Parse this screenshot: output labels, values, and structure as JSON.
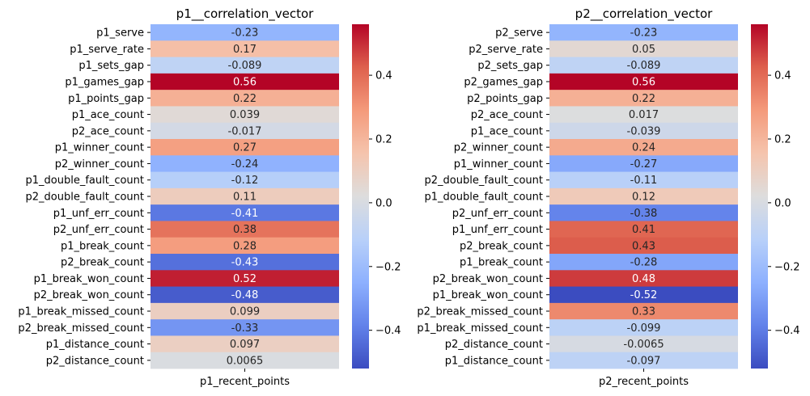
{
  "chart_data": [
    {
      "type": "heatmap",
      "title": "p1__correlation_vector",
      "column": "p1_recent_points",
      "colormap": "coolwarm",
      "vmin": -0.52,
      "vmax": 0.56,
      "colorbar_ticks": [
        "0.4",
        "0.2",
        "0.0",
        "−0.2",
        "−0.4"
      ],
      "colorbar_tick_values": [
        0.4,
        0.2,
        0.0,
        -0.2,
        -0.4
      ],
      "rows": [
        {
          "label": "p1_serve",
          "value": -0.23,
          "text": "-0.23"
        },
        {
          "label": "p1_serve_rate",
          "value": 0.17,
          "text": "0.17"
        },
        {
          "label": "p1_sets_gap",
          "value": -0.089,
          "text": "-0.089"
        },
        {
          "label": "p1_games_gap",
          "value": 0.56,
          "text": "0.56"
        },
        {
          "label": "p1_points_gap",
          "value": 0.22,
          "text": "0.22"
        },
        {
          "label": "p1_ace_count",
          "value": 0.039,
          "text": "0.039"
        },
        {
          "label": "p2_ace_count",
          "value": -0.017,
          "text": "-0.017"
        },
        {
          "label": "p1_winner_count",
          "value": 0.27,
          "text": "0.27"
        },
        {
          "label": "p2_winner_count",
          "value": -0.24,
          "text": "-0.24"
        },
        {
          "label": "p1_double_fault_count",
          "value": -0.12,
          "text": "-0.12"
        },
        {
          "label": "p2_double_fault_count",
          "value": 0.11,
          "text": "0.11"
        },
        {
          "label": "p1_unf_err_count",
          "value": -0.41,
          "text": "-0.41"
        },
        {
          "label": "p2_unf_err_count",
          "value": 0.38,
          "text": "0.38"
        },
        {
          "label": "p1_break_count",
          "value": 0.28,
          "text": "0.28"
        },
        {
          "label": "p2_break_count",
          "value": -0.43,
          "text": "-0.43"
        },
        {
          "label": "p1_break_won_count",
          "value": 0.52,
          "text": "0.52"
        },
        {
          "label": "p2_break_won_count",
          "value": -0.48,
          "text": "-0.48"
        },
        {
          "label": "p1_break_missed_count",
          "value": 0.099,
          "text": "0.099"
        },
        {
          "label": "p2_break_missed_count",
          "value": -0.33,
          "text": "-0.33"
        },
        {
          "label": "p1_distance_count",
          "value": 0.097,
          "text": "0.097"
        },
        {
          "label": "p2_distance_count",
          "value": 0.0065,
          "text": "0.0065"
        }
      ]
    },
    {
      "type": "heatmap",
      "title": "p2__correlation_vector",
      "column": "p2_recent_points",
      "colormap": "coolwarm",
      "vmin": -0.52,
      "vmax": 0.56,
      "colorbar_ticks": [
        "0.4",
        "0.2",
        "0.0",
        "−0.2",
        "−0.4"
      ],
      "colorbar_tick_values": [
        0.4,
        0.2,
        0.0,
        -0.2,
        -0.4
      ],
      "rows": [
        {
          "label": "p2_serve",
          "value": -0.23,
          "text": "-0.23"
        },
        {
          "label": "p2_serve_rate",
          "value": 0.05,
          "text": "0.05"
        },
        {
          "label": "p2_sets_gap",
          "value": -0.089,
          "text": "-0.089"
        },
        {
          "label": "p2_games_gap",
          "value": 0.56,
          "text": "0.56"
        },
        {
          "label": "p2_points_gap",
          "value": 0.22,
          "text": "0.22"
        },
        {
          "label": "p2_ace_count",
          "value": 0.017,
          "text": "0.017"
        },
        {
          "label": "p1_ace_count",
          "value": -0.039,
          "text": "-0.039"
        },
        {
          "label": "p2_winner_count",
          "value": 0.24,
          "text": "0.24"
        },
        {
          "label": "p1_winner_count",
          "value": -0.27,
          "text": "-0.27"
        },
        {
          "label": "p2_double_fault_count",
          "value": -0.11,
          "text": "-0.11"
        },
        {
          "label": "p1_double_fault_count",
          "value": 0.12,
          "text": "0.12"
        },
        {
          "label": "p2_unf_err_count",
          "value": -0.38,
          "text": "-0.38"
        },
        {
          "label": "p1_unf_err_count",
          "value": 0.41,
          "text": "0.41"
        },
        {
          "label": "p2_break_count",
          "value": 0.43,
          "text": "0.43"
        },
        {
          "label": "p1_break_count",
          "value": -0.28,
          "text": "-0.28"
        },
        {
          "label": "p2_break_won_count",
          "value": 0.48,
          "text": "0.48"
        },
        {
          "label": "p1_break_won_count",
          "value": -0.52,
          "text": "-0.52"
        },
        {
          "label": "p2_break_missed_count",
          "value": 0.33,
          "text": "0.33"
        },
        {
          "label": "p1_break_missed_count",
          "value": -0.099,
          "text": "-0.099"
        },
        {
          "label": "p2_distance_count",
          "value": -0.0065,
          "text": "-0.0065"
        },
        {
          "label": "p1_distance_count",
          "value": -0.097,
          "text": "-0.097"
        }
      ]
    }
  ]
}
